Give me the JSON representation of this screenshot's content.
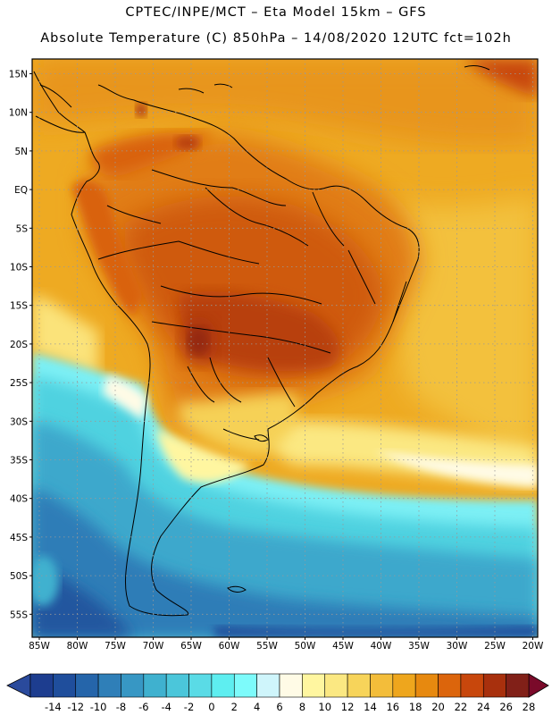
{
  "header": {
    "line1": "CPTEC/INPE/MCT –  Eta Model 15km – GFS",
    "line2": "Absolute Temperature (C) 850hPa – 14/08/2020 12UTC fct=102h"
  },
  "map": {
    "lat_labels": [
      "15N",
      "10N",
      "5N",
      "EQ",
      "5S",
      "10S",
      "15S",
      "20S",
      "25S",
      "30S",
      "35S",
      "40S",
      "45S",
      "50S",
      "55S"
    ],
    "lon_labels": [
      "85W",
      "80W",
      "75W",
      "70W",
      "65W",
      "60W",
      "55W",
      "50W",
      "45W",
      "40W",
      "35W",
      "30W",
      "25W",
      "20W"
    ],
    "gridlines": "dotted"
  },
  "colorbar": {
    "labels": [
      "-14",
      "-12",
      "-10",
      "-8",
      "-6",
      "-4",
      "-2",
      "0",
      "2",
      "4",
      "6",
      "8",
      "10",
      "12",
      "14",
      "16",
      "18",
      "20",
      "22",
      "24",
      "26",
      "28"
    ],
    "colors": [
      "#1d3d8f",
      "#1f4e9c",
      "#2565aa",
      "#2f7fb8",
      "#3797c4",
      "#3fb1cf",
      "#4bc6da",
      "#5adbe6",
      "#5eeef0",
      "#7dfbfb",
      "#cff5fb",
      "#fffbe6",
      "#fff6a0",
      "#fbe882",
      "#f7d45a",
      "#f3bd3a",
      "#eea61d",
      "#e7890f",
      "#dc650c",
      "#c8470c",
      "#a8300d",
      "#812018"
    ],
    "low_arrow_color": "#2a4a9c",
    "high_arrow_color": "#7a0a2a"
  }
}
